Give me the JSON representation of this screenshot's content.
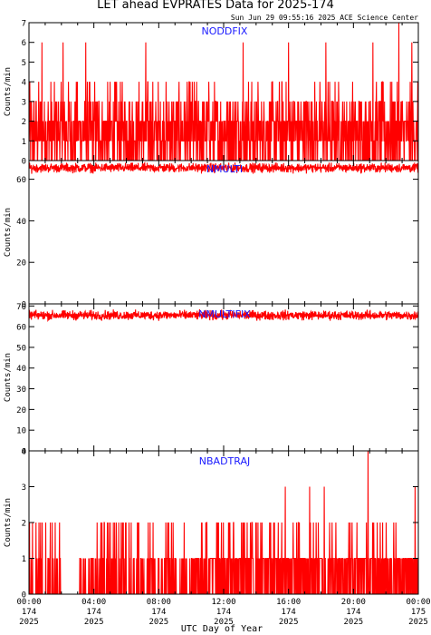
{
  "title": "LET ahead EVPRATES Data for 2025-174",
  "timestamp": "Sun Jun 29 09:55:16 2025 ACE Science Center",
  "xlabel": "UTC Day of Year",
  "colors": {
    "data": "#ff0000",
    "panel_label": "#1a1aff",
    "axes": "#000000"
  },
  "x_ticks": [
    {
      "time": "00:00",
      "day": "174",
      "year": "2025"
    },
    {
      "time": "04:00",
      "day": "174",
      "year": "2025"
    },
    {
      "time": "08:00",
      "day": "174",
      "year": "2025"
    },
    {
      "time": "12:00",
      "day": "174",
      "year": "2025"
    },
    {
      "time": "16:00",
      "day": "174",
      "year": "2025"
    },
    {
      "time": "20:00",
      "day": "174",
      "year": "2025"
    },
    {
      "time": "00:00",
      "day": "175",
      "year": "2025"
    }
  ],
  "chart_data": [
    {
      "type": "line",
      "name": "NODDFIX",
      "ylabel": "Counts/min",
      "ylim": [
        0,
        7
      ],
      "yticks": [
        "0",
        "1",
        "2",
        "3",
        "4",
        "5",
        "6",
        "7"
      ],
      "xlim_hours": [
        0,
        24
      ],
      "sample_count": 1440,
      "typical_range": [
        0,
        3
      ],
      "baseline": 1.6,
      "peaks": [
        {
          "hour": 22.8,
          "value": 7
        },
        {
          "hour": 0.8,
          "value": 6
        },
        {
          "hour": 2.1,
          "value": 6
        },
        {
          "hour": 3.5,
          "value": 6
        },
        {
          "hour": 7.2,
          "value": 6
        },
        {
          "hour": 13.2,
          "value": 6
        },
        {
          "hour": 16.0,
          "value": 6
        },
        {
          "hour": 18.3,
          "value": 6
        },
        {
          "hour": 21.2,
          "value": 6
        },
        {
          "hour": 23.6,
          "value": 6
        }
      ]
    },
    {
      "type": "line",
      "name": "NMULTI",
      "ylabel": "Counts/min",
      "ylim": [
        0,
        69
      ],
      "yticks": [
        "0",
        "20",
        "40",
        "60"
      ],
      "xlim_hours": [
        0,
        24
      ],
      "sample_count": 1440,
      "mean": 65.5,
      "range": [
        62,
        68
      ]
    },
    {
      "type": "line",
      "name": "NMULTIFIX",
      "ylabel": "Counts/min",
      "ylim": [
        0,
        71
      ],
      "yticks": [
        "0",
        "10",
        "20",
        "30",
        "40",
        "50",
        "60",
        "70"
      ],
      "xlim_hours": [
        0,
        24
      ],
      "sample_count": 1440,
      "mean": 65.5,
      "range": [
        62,
        69
      ]
    },
    {
      "type": "line",
      "name": "NBADTRAJ",
      "ylabel": "Counts/min",
      "ylim": [
        0,
        4
      ],
      "yticks": [
        "0",
        "1",
        "2",
        "3",
        "4"
      ],
      "xlim_hours": [
        0,
        24
      ],
      "sample_count": 1440,
      "typical_range": [
        0,
        2
      ],
      "gap_hours": [
        [
          2.0,
          3.0
        ]
      ],
      "peaks": [
        {
          "hour": 20.9,
          "value": 4
        },
        {
          "hour": 15.8,
          "value": 3
        },
        {
          "hour": 17.3,
          "value": 3
        },
        {
          "hour": 18.2,
          "value": 3
        },
        {
          "hour": 23.8,
          "value": 3
        }
      ]
    }
  ]
}
